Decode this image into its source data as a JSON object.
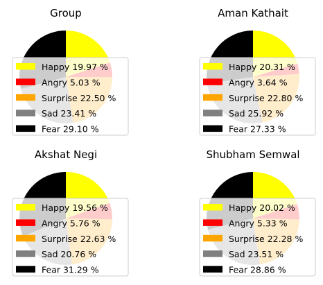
{
  "chart_data": [
    {
      "type": "pie",
      "title": "Group",
      "slices": [
        {
          "label": "Happy 19.97 %",
          "value": 19.97,
          "color": "#ffff00"
        },
        {
          "label": "Angry 5.03 %",
          "value": 5.03,
          "color": "#ff0000"
        },
        {
          "label": "Surprise 22.50 %",
          "value": 22.5,
          "color": "#ffa500"
        },
        {
          "label": "Sad 23.41 %",
          "value": 23.41,
          "color": "#808080"
        },
        {
          "label": "Fear 29.10 %",
          "value": 29.1,
          "color": "#000000"
        }
      ],
      "legend_position": "lower-left"
    },
    {
      "type": "pie",
      "title": "Aman Kathait",
      "slices": [
        {
          "label": "Happy 20.31 %",
          "value": 20.31,
          "color": "#ffff00"
        },
        {
          "label": "Angry 3.64 %",
          "value": 3.64,
          "color": "#ff0000"
        },
        {
          "label": "Surprise 22.80 %",
          "value": 22.8,
          "color": "#ffa500"
        },
        {
          "label": "Sad 25.92 %",
          "value": 25.92,
          "color": "#808080"
        },
        {
          "label": "Fear 27.33 %",
          "value": 27.33,
          "color": "#000000"
        }
      ],
      "legend_position": "lower-left"
    },
    {
      "type": "pie",
      "title": "Akshat Negi",
      "slices": [
        {
          "label": "Happy 19.56 %",
          "value": 19.56,
          "color": "#ffff00"
        },
        {
          "label": "Angry 5.76 %",
          "value": 5.76,
          "color": "#ff0000"
        },
        {
          "label": "Surprise 22.63 %",
          "value": 22.63,
          "color": "#ffa500"
        },
        {
          "label": "Sad 20.76 %",
          "value": 20.76,
          "color": "#808080"
        },
        {
          "label": "Fear 31.29 %",
          "value": 31.29,
          "color": "#000000"
        }
      ],
      "legend_position": "lower-left"
    },
    {
      "type": "pie",
      "title": "Shubham Semwal",
      "slices": [
        {
          "label": "Happy 20.02 %",
          "value": 20.02,
          "color": "#ffff00"
        },
        {
          "label": "Angry 5.33 %",
          "value": 5.33,
          "color": "#ff0000"
        },
        {
          "label": "Surprise 22.28 %",
          "value": 22.28,
          "color": "#ffa500"
        },
        {
          "label": "Sad 23.51 %",
          "value": 23.51,
          "color": "#808080"
        },
        {
          "label": "Fear 28.86 %",
          "value": 28.86,
          "color": "#000000"
        }
      ],
      "legend_position": "lower-left"
    }
  ]
}
